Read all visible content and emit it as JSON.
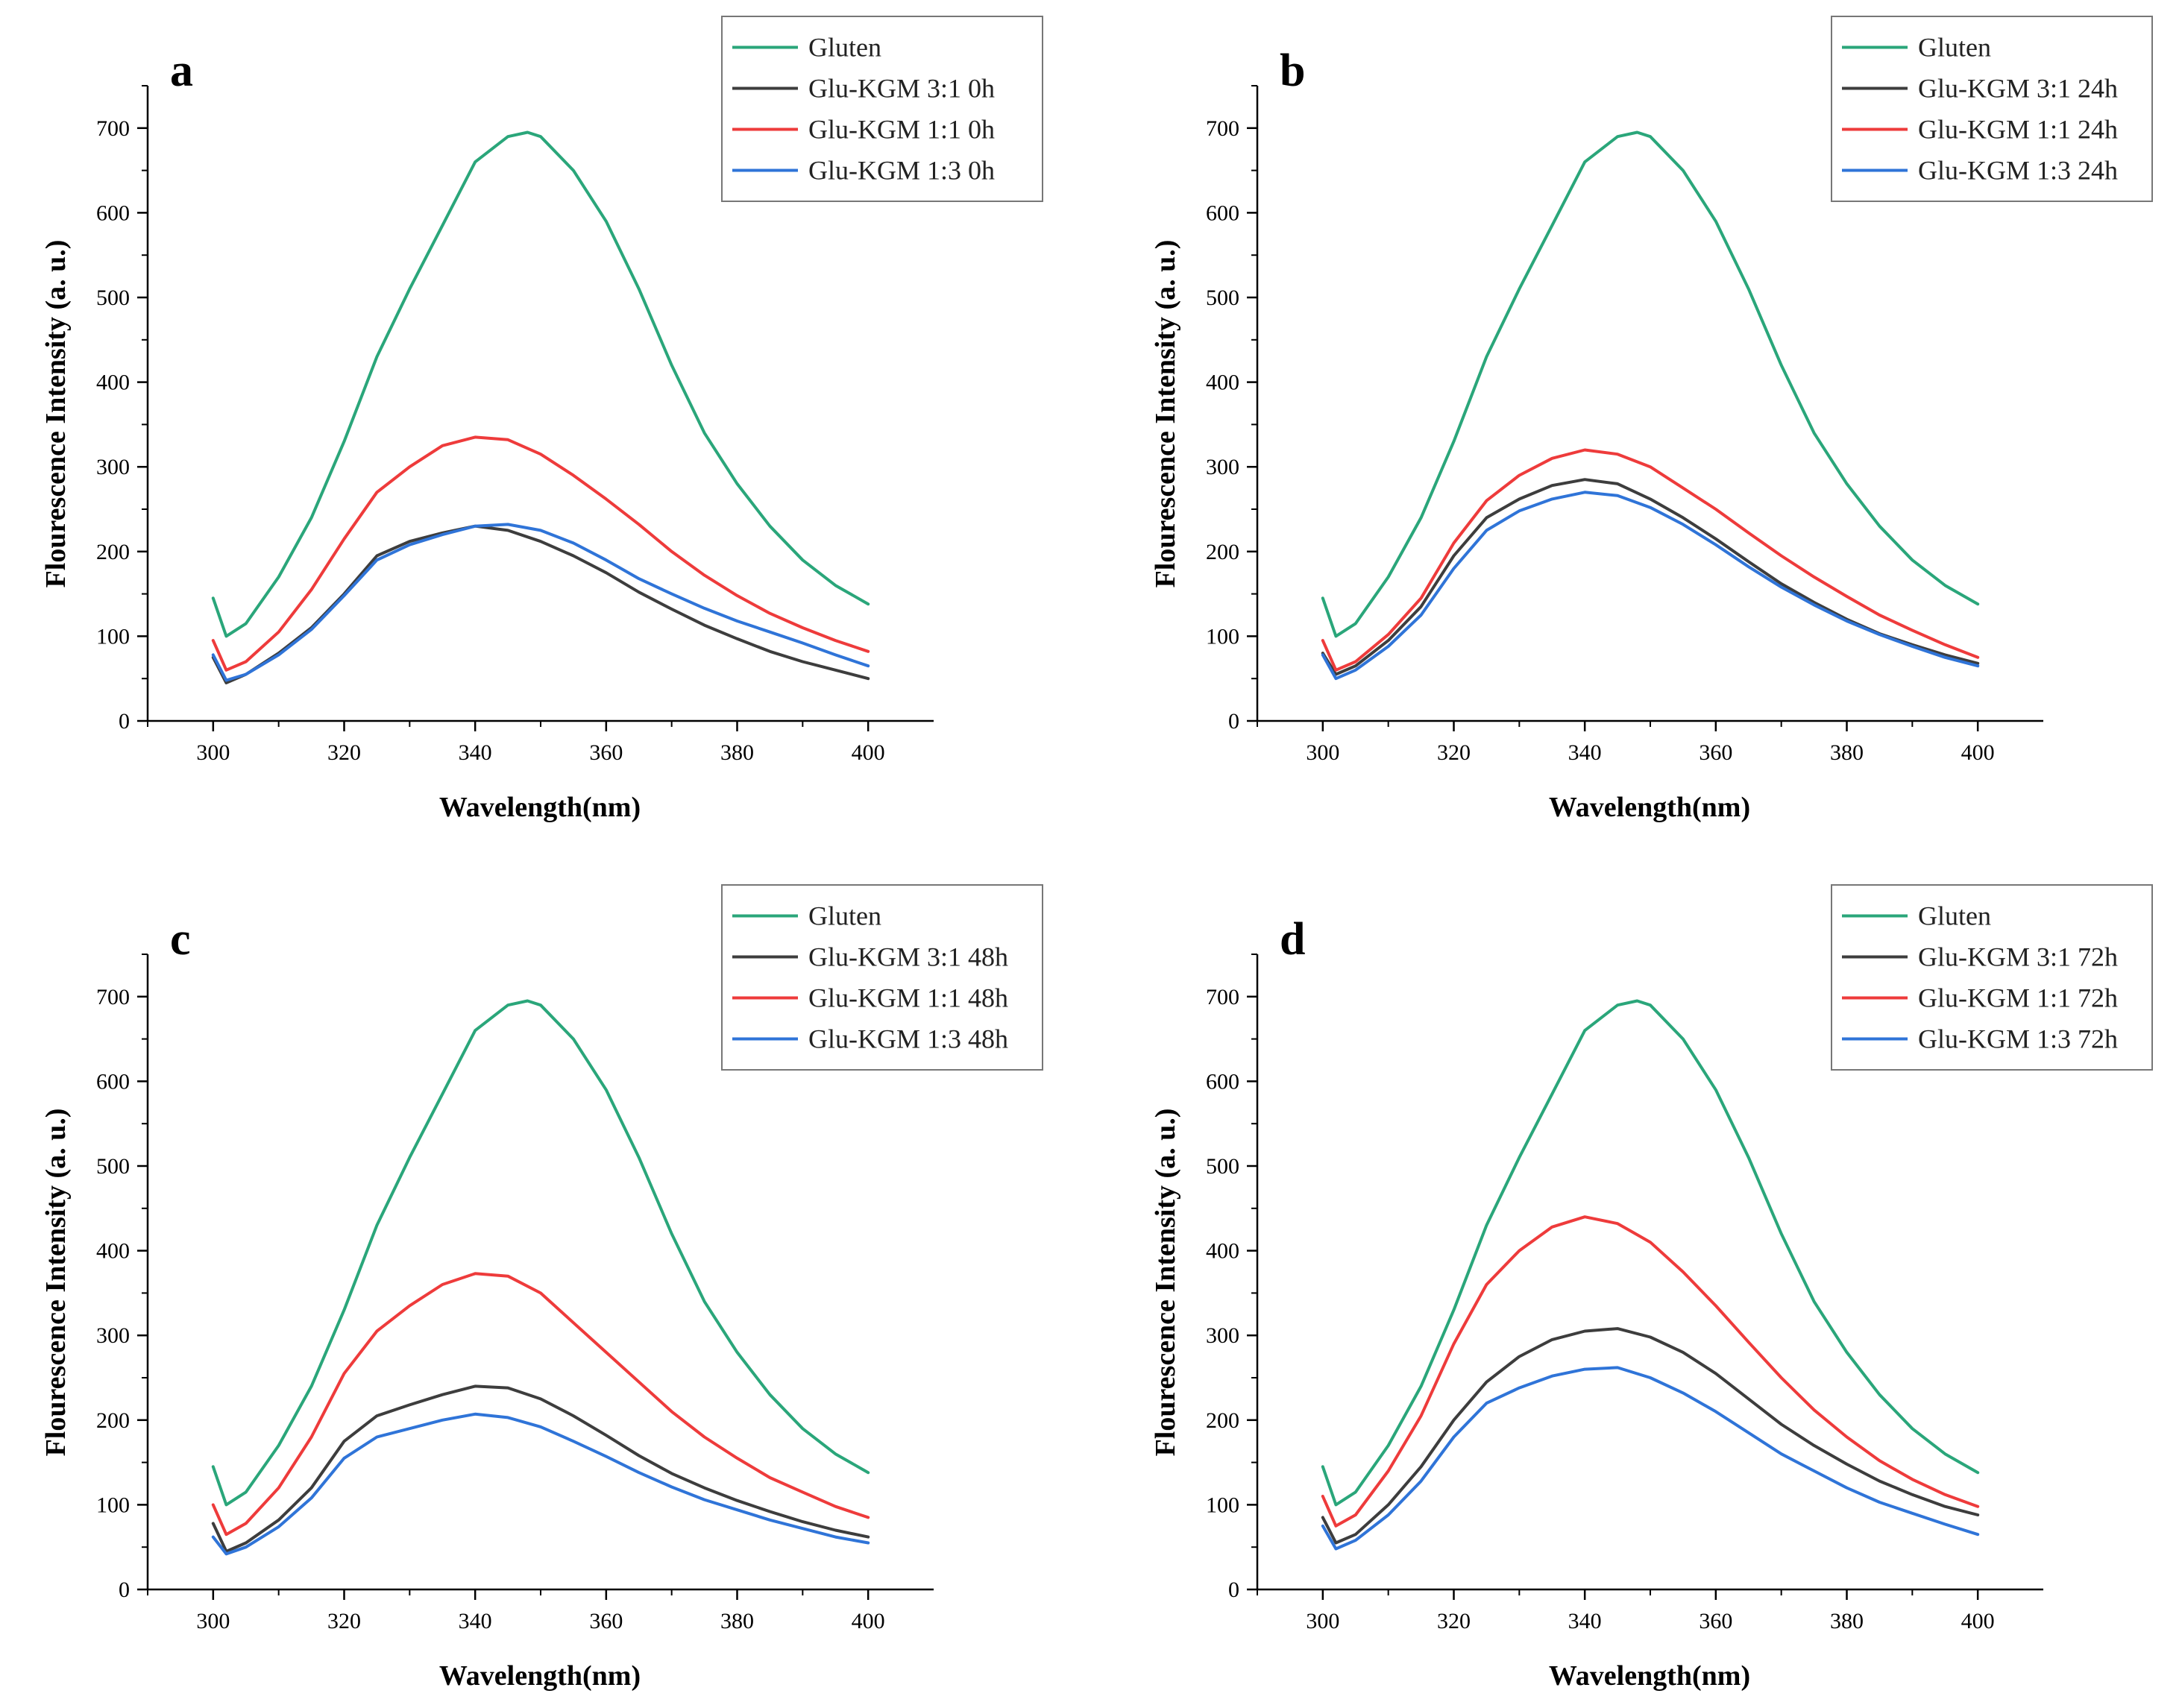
{
  "colors": {
    "Gluten": "#2aa67a",
    "ratio_3_1": "#3d3d3d",
    "ratio_1_1": "#ee3b3b",
    "ratio_1_3": "#2f74d8"
  },
  "chart_data": [
    {
      "panel": "a",
      "type": "line",
      "xlabel": "Wavelength(nm)",
      "ylabel": "Flourescence Intensity (a. u.)",
      "xlim": [
        290,
        410
      ],
      "ylim": [
        0,
        750
      ],
      "xticks": [
        300,
        320,
        340,
        360,
        380,
        400
      ],
      "yticks": [
        0,
        100,
        200,
        300,
        400,
        500,
        600,
        700
      ],
      "legend_position": "top-right",
      "series": [
        {
          "name": "Gluten",
          "color_key": "Gluten",
          "x": [
            300,
            302,
            305,
            310,
            315,
            320,
            325,
            330,
            335,
            340,
            345,
            348,
            350,
            355,
            360,
            365,
            370,
            375,
            380,
            385,
            390,
            395,
            400
          ],
          "y": [
            145,
            100,
            115,
            170,
            240,
            330,
            430,
            510,
            585,
            660,
            690,
            695,
            690,
            650,
            590,
            510,
            420,
            340,
            280,
            230,
            190,
            160,
            138
          ]
        },
        {
          "name": "Glu-KGM 3:1 0h",
          "color_key": "ratio_3_1",
          "x": [
            300,
            302,
            305,
            310,
            315,
            320,
            325,
            330,
            335,
            340,
            345,
            350,
            355,
            360,
            365,
            370,
            375,
            380,
            385,
            390,
            395,
            400
          ],
          "y": [
            75,
            45,
            55,
            80,
            110,
            150,
            195,
            212,
            222,
            230,
            225,
            212,
            195,
            175,
            152,
            132,
            113,
            97,
            82,
            70,
            60,
            50
          ]
        },
        {
          "name": "Glu-KGM 1:1 0h",
          "color_key": "ratio_1_1",
          "x": [
            300,
            302,
            305,
            310,
            315,
            320,
            325,
            330,
            335,
            340,
            345,
            350,
            355,
            360,
            365,
            370,
            375,
            380,
            385,
            390,
            395,
            400
          ],
          "y": [
            95,
            60,
            70,
            105,
            155,
            215,
            270,
            300,
            325,
            335,
            332,
            315,
            290,
            262,
            232,
            200,
            172,
            148,
            127,
            110,
            95,
            82
          ]
        },
        {
          "name": "Glu-KGM 1:3 0h",
          "color_key": "ratio_1_3",
          "x": [
            300,
            302,
            305,
            310,
            315,
            320,
            325,
            330,
            335,
            340,
            345,
            350,
            355,
            360,
            365,
            370,
            375,
            380,
            385,
            390,
            395,
            400
          ],
          "y": [
            78,
            48,
            55,
            78,
            108,
            148,
            190,
            208,
            220,
            230,
            232,
            225,
            210,
            190,
            168,
            150,
            133,
            118,
            105,
            92,
            78,
            65
          ]
        }
      ]
    },
    {
      "panel": "b",
      "type": "line",
      "xlabel": "Wavelength(nm)",
      "ylabel": "Flourescence Intensity (a. u.)",
      "xlim": [
        290,
        410
      ],
      "ylim": [
        0,
        750
      ],
      "xticks": [
        300,
        320,
        340,
        360,
        380,
        400
      ],
      "yticks": [
        0,
        100,
        200,
        300,
        400,
        500,
        600,
        700
      ],
      "legend_position": "top-right",
      "series": [
        {
          "name": "Gluten",
          "color_key": "Gluten",
          "x": [
            300,
            302,
            305,
            310,
            315,
            320,
            325,
            330,
            335,
            340,
            345,
            348,
            350,
            355,
            360,
            365,
            370,
            375,
            380,
            385,
            390,
            395,
            400
          ],
          "y": [
            145,
            100,
            115,
            170,
            240,
            330,
            430,
            510,
            585,
            660,
            690,
            695,
            690,
            650,
            590,
            510,
            420,
            340,
            280,
            230,
            190,
            160,
            138
          ]
        },
        {
          "name": "Glu-KGM 3:1 24h",
          "color_key": "ratio_3_1",
          "x": [
            300,
            302,
            305,
            310,
            315,
            320,
            325,
            330,
            335,
            340,
            345,
            350,
            355,
            360,
            365,
            370,
            375,
            380,
            385,
            390,
            395,
            400
          ],
          "y": [
            80,
            55,
            65,
            95,
            135,
            195,
            240,
            262,
            278,
            285,
            280,
            262,
            240,
            215,
            188,
            162,
            140,
            120,
            103,
            90,
            78,
            68
          ]
        },
        {
          "name": "Glu-KGM 1:1 24h",
          "color_key": "ratio_1_1",
          "x": [
            300,
            302,
            305,
            310,
            315,
            320,
            325,
            330,
            335,
            340,
            345,
            350,
            355,
            360,
            365,
            370,
            375,
            380,
            385,
            390,
            395,
            400
          ],
          "y": [
            95,
            60,
            70,
            102,
            145,
            210,
            260,
            290,
            310,
            320,
            315,
            300,
            275,
            250,
            222,
            195,
            170,
            147,
            125,
            107,
            90,
            75
          ]
        },
        {
          "name": "Glu-KGM 1:3 24h",
          "color_key": "ratio_1_3",
          "x": [
            300,
            302,
            305,
            310,
            315,
            320,
            325,
            330,
            335,
            340,
            345,
            350,
            355,
            360,
            365,
            370,
            375,
            380,
            385,
            390,
            395,
            400
          ],
          "y": [
            78,
            50,
            60,
            88,
            125,
            180,
            225,
            248,
            262,
            270,
            266,
            252,
            232,
            208,
            182,
            158,
            137,
            118,
            102,
            88,
            75,
            65
          ]
        }
      ]
    },
    {
      "panel": "c",
      "type": "line",
      "xlabel": "Wavelength(nm)",
      "ylabel": "Flourescence Intensity (a. u.)",
      "xlim": [
        290,
        410
      ],
      "ylim": [
        0,
        750
      ],
      "xticks": [
        300,
        320,
        340,
        360,
        380,
        400
      ],
      "yticks": [
        0,
        100,
        200,
        300,
        400,
        500,
        600,
        700
      ],
      "legend_position": "top-right",
      "series": [
        {
          "name": "Gluten",
          "color_key": "Gluten",
          "x": [
            300,
            302,
            305,
            310,
            315,
            320,
            325,
            330,
            335,
            340,
            345,
            348,
            350,
            355,
            360,
            365,
            370,
            375,
            380,
            385,
            390,
            395,
            400
          ],
          "y": [
            145,
            100,
            115,
            170,
            240,
            330,
            430,
            510,
            585,
            660,
            690,
            695,
            690,
            650,
            590,
            510,
            420,
            340,
            280,
            230,
            190,
            160,
            138
          ]
        },
        {
          "name": "Glu-KGM 3:1 48h",
          "color_key": "ratio_3_1",
          "x": [
            300,
            302,
            305,
            310,
            315,
            320,
            325,
            330,
            335,
            340,
            345,
            350,
            355,
            360,
            365,
            370,
            375,
            380,
            385,
            390,
            395,
            400
          ],
          "y": [
            78,
            45,
            55,
            82,
            120,
            175,
            205,
            218,
            230,
            240,
            238,
            225,
            205,
            182,
            158,
            137,
            120,
            105,
            92,
            80,
            70,
            62
          ]
        },
        {
          "name": "Glu-KGM 1:1 48h",
          "color_key": "ratio_1_1",
          "x": [
            300,
            302,
            305,
            310,
            315,
            320,
            325,
            330,
            335,
            340,
            345,
            350,
            355,
            360,
            365,
            370,
            375,
            380,
            385,
            390,
            395,
            400
          ],
          "y": [
            100,
            65,
            78,
            120,
            180,
            255,
            305,
            335,
            360,
            373,
            370,
            350,
            315,
            280,
            245,
            210,
            180,
            155,
            132,
            115,
            98,
            85
          ]
        },
        {
          "name": "Glu-KGM 1:3 48h",
          "color_key": "ratio_1_3",
          "x": [
            300,
            302,
            305,
            310,
            315,
            320,
            325,
            330,
            335,
            340,
            345,
            350,
            355,
            360,
            365,
            370,
            375,
            380,
            385,
            390,
            395,
            400
          ],
          "y": [
            62,
            42,
            50,
            74,
            108,
            155,
            180,
            190,
            200,
            207,
            203,
            192,
            175,
            157,
            138,
            121,
            106,
            94,
            82,
            72,
            62,
            55
          ]
        }
      ]
    },
    {
      "panel": "d",
      "type": "line",
      "xlabel": "Wavelength(nm)",
      "ylabel": "Flourescence Intensity (a. u.)",
      "xlim": [
        290,
        410
      ],
      "ylim": [
        0,
        750
      ],
      "xticks": [
        300,
        320,
        340,
        360,
        380,
        400
      ],
      "yticks": [
        0,
        100,
        200,
        300,
        400,
        500,
        600,
        700
      ],
      "legend_position": "top-right",
      "series": [
        {
          "name": "Gluten",
          "color_key": "Gluten",
          "x": [
            300,
            302,
            305,
            310,
            315,
            320,
            325,
            330,
            335,
            340,
            345,
            348,
            350,
            355,
            360,
            365,
            370,
            375,
            380,
            385,
            390,
            395,
            400
          ],
          "y": [
            145,
            100,
            115,
            170,
            240,
            330,
            430,
            510,
            585,
            660,
            690,
            695,
            690,
            650,
            590,
            510,
            420,
            340,
            280,
            230,
            190,
            160,
            138
          ]
        },
        {
          "name": "Glu-KGM 3:1 72h",
          "color_key": "ratio_3_1",
          "x": [
            300,
            302,
            305,
            310,
            315,
            320,
            325,
            330,
            335,
            340,
            345,
            350,
            355,
            360,
            365,
            370,
            375,
            380,
            385,
            390,
            395,
            400
          ],
          "y": [
            85,
            55,
            65,
            100,
            145,
            200,
            245,
            275,
            295,
            305,
            308,
            298,
            280,
            255,
            225,
            195,
            170,
            148,
            128,
            112,
            98,
            88
          ]
        },
        {
          "name": "Glu-KGM 1:1 72h",
          "color_key": "ratio_1_1",
          "x": [
            300,
            302,
            305,
            310,
            315,
            320,
            325,
            330,
            335,
            340,
            345,
            350,
            355,
            360,
            365,
            370,
            375,
            380,
            385,
            390,
            395,
            400
          ],
          "y": [
            110,
            75,
            88,
            140,
            205,
            290,
            360,
            400,
            428,
            440,
            432,
            410,
            375,
            335,
            292,
            250,
            212,
            180,
            152,
            130,
            112,
            98
          ]
        },
        {
          "name": "Glu-KGM 1:3 72h",
          "color_key": "ratio_1_3",
          "x": [
            300,
            302,
            305,
            310,
            315,
            320,
            325,
            330,
            335,
            340,
            345,
            350,
            355,
            360,
            365,
            370,
            375,
            380,
            385,
            390,
            395,
            400
          ],
          "y": [
            75,
            48,
            58,
            88,
            128,
            180,
            220,
            238,
            252,
            260,
            262,
            250,
            232,
            210,
            185,
            160,
            140,
            120,
            103,
            90,
            77,
            65
          ]
        }
      ]
    }
  ]
}
